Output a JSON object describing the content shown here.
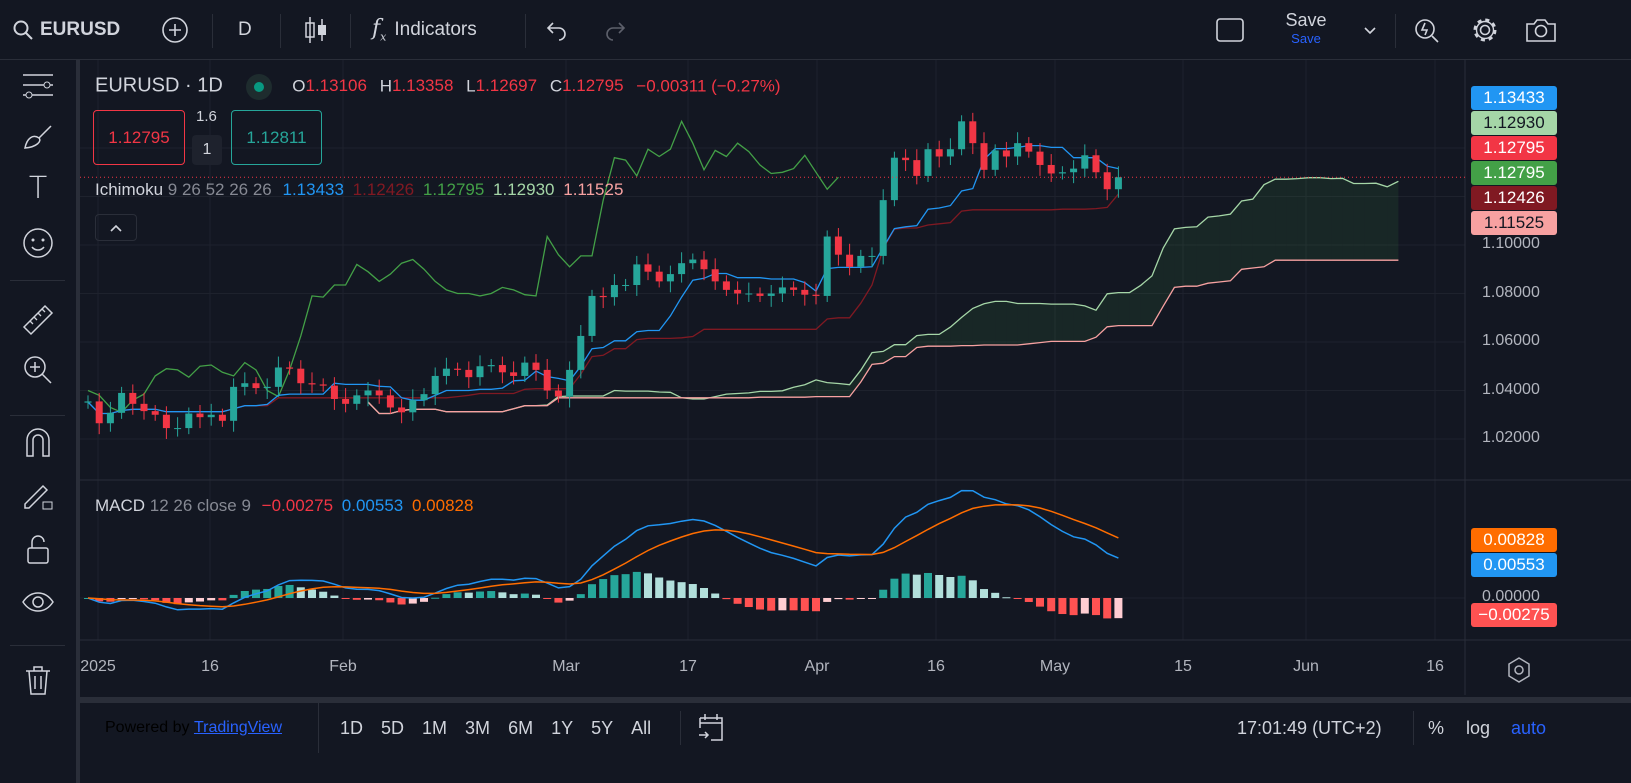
{
  "topbar": {
    "symbol": "EURUSD",
    "interval": "D",
    "indicators_label": "Indicators",
    "save_label": "Save",
    "save_sub": "Save"
  },
  "legend": {
    "title": "EURUSD · 1D",
    "o_label": "O",
    "o": "1.13106",
    "h_label": "H",
    "h": "1.13358",
    "l_label": "L",
    "l": "1.12697",
    "c_label": "C",
    "c": "1.12795",
    "change": "−0.00311 (−0.27%)",
    "sell_price": "1.12795",
    "spread_top": "1.6",
    "spread_qty": "1",
    "buy_price": "1.12811",
    "ichimoku_name": "Ichimoku",
    "ichimoku_params": "9 26 52 26 26",
    "ichimoku_values": [
      "1.13433",
      "1.12426",
      "1.12795",
      "1.12930",
      "1.11525"
    ],
    "macd_name": "MACD",
    "macd_params": "12 26 close 9",
    "macd_values": [
      "−0.00275",
      "0.00553",
      "0.00828"
    ]
  },
  "colors": {
    "up": "#26a69a",
    "down": "#f23645",
    "tenkan": "#2196f3",
    "kijun": "#801922",
    "chikou": "#43a047",
    "spanA": "#a5d6a7",
    "spanB": "#f7a1a1",
    "macd": "#2196f3",
    "signal": "#ff6d00",
    "accent": "#2962ff",
    "bg": "#131722"
  },
  "price_axis": {
    "ticks": [
      "1.02000",
      "1.04000",
      "1.06000",
      "1.08000",
      "1.10000"
    ],
    "labels": [
      {
        "text": "1.13433",
        "bg": "#2196f3",
        "fg": "#ffffff"
      },
      {
        "text": "1.12930",
        "bg": "#a5d6a7",
        "fg": "#131722"
      },
      {
        "text": "1.12795",
        "bg": "#f23645",
        "fg": "#ffffff"
      },
      {
        "text": "1.12795",
        "bg": "#43a047",
        "fg": "#ffffff"
      },
      {
        "text": "1.12426",
        "bg": "#801922",
        "fg": "#ffffff"
      },
      {
        "text": "1.11525",
        "bg": "#f7a1a1",
        "fg": "#131722"
      }
    ]
  },
  "macd_axis": {
    "ticks": [
      "0.00000"
    ],
    "labels": [
      {
        "text": "0.00828",
        "bg": "#ff6d00",
        "fg": "#ffffff"
      },
      {
        "text": "0.00553",
        "bg": "#2196f3",
        "fg": "#ffffff"
      },
      {
        "text": "−0.00275",
        "bg": "#ff5252",
        "fg": "#ffffff"
      }
    ]
  },
  "time_axis": {
    "ticks": [
      "2025",
      "16",
      "Feb",
      "Mar",
      "17",
      "Apr",
      "16",
      "May",
      "15",
      "Jun",
      "16"
    ]
  },
  "bottombar": {
    "powered_by": "Powered by",
    "brand": "TradingView",
    "ranges": [
      "1D",
      "5D",
      "1M",
      "3M",
      "6M",
      "1Y",
      "5Y",
      "All"
    ],
    "clock": "17:01:49 (UTC+2)",
    "percent": "%",
    "log": "log",
    "auto": "auto"
  },
  "chart_data": {
    "type": "candlestick",
    "symbol": "EURUSD",
    "interval": "1D",
    "first_date": "2025-01-01",
    "last_date": "2025-05-09",
    "open_first": 1.035,
    "close": [
      1.0355,
      1.0265,
      1.0308,
      1.039,
      1.0345,
      1.0315,
      1.03,
      1.0245,
      1.0245,
      1.0305,
      1.029,
      1.03,
      1.0275,
      1.0415,
      1.043,
      1.041,
      1.0415,
      1.0495,
      1.049,
      1.043,
      1.0425,
      1.042,
      1.0365,
      1.0345,
      1.038,
      1.04,
      1.038,
      1.033,
      1.031,
      1.036,
      1.0385,
      1.046,
      1.049,
      1.0485,
      1.0455,
      1.05,
      1.0505,
      1.0475,
      1.046,
      1.0515,
      1.0485,
      1.04,
      1.0375,
      1.0485,
      1.0625,
      1.079,
      1.0785,
      1.0835,
      1.0835,
      1.092,
      1.089,
      1.085,
      1.088,
      1.0925,
      1.094,
      1.09,
      1.085,
      1.0815,
      1.08,
      1.08,
      1.079,
      1.08,
      1.0825,
      1.0815,
      1.0795,
      1.079,
      1.1035,
      1.096,
      1.091,
      1.0955,
      1.0955,
      1.1185,
      1.136,
      1.135,
      1.1285,
      1.1395,
      1.1365,
      1.1395,
      1.151,
      1.142,
      1.131,
      1.139,
      1.1365,
      1.142,
      1.1385,
      1.133,
      1.1295,
      1.13,
      1.1315,
      1.137,
      1.13,
      1.123,
      1.12795
    ],
    "indicators": [
      "Ichimoku 9 26 52 26 26",
      "MACD 12 26 close 9"
    ],
    "price_range": [
      1.01,
      1.155
    ],
    "grid": true
  }
}
